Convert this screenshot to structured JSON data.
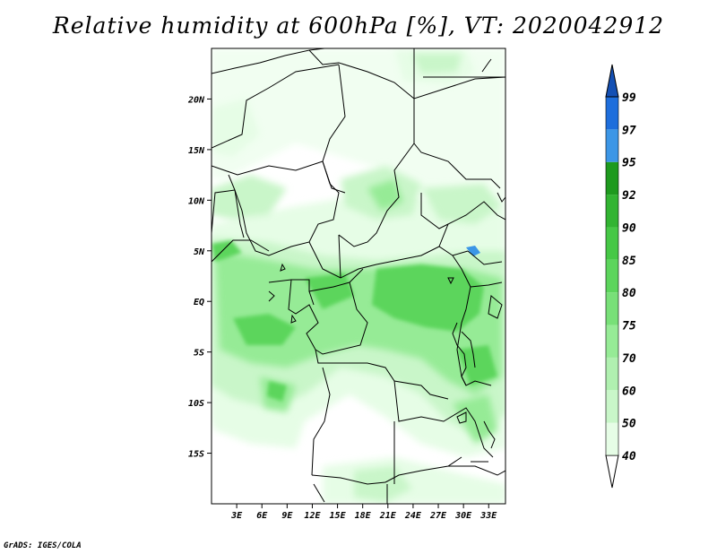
{
  "title": "Relative humidity at 600hPa [%], VT: 2020042912",
  "credit": "GrADS: IGES/COLA",
  "map": {
    "lon_range": [
      0,
      35
    ],
    "lat_range": [
      -20,
      25
    ],
    "y_ticks": [
      {
        "lat": 20,
        "label": "20N"
      },
      {
        "lat": 15,
        "label": "15N"
      },
      {
        "lat": 10,
        "label": "10N"
      },
      {
        "lat": 5,
        "label": "5N"
      },
      {
        "lat": 0,
        "label": "EQ"
      },
      {
        "lat": -5,
        "label": "5S"
      },
      {
        "lat": -10,
        "label": "10S"
      },
      {
        "lat": -15,
        "label": "15S"
      }
    ],
    "x_ticks": [
      {
        "lon": 3,
        "label": "3E"
      },
      {
        "lon": 6,
        "label": "6E"
      },
      {
        "lon": 9,
        "label": "9E"
      },
      {
        "lon": 12,
        "label": "12E"
      },
      {
        "lon": 15,
        "label": "15E"
      },
      {
        "lon": 18,
        "label": "18E"
      },
      {
        "lon": 21,
        "label": "21E"
      },
      {
        "lon": 24,
        "label": "24E"
      },
      {
        "lon": 27,
        "label": "27E"
      },
      {
        "lon": 30,
        "label": "30E"
      },
      {
        "lon": 33,
        "label": "33E"
      }
    ]
  },
  "colorbar": {
    "levels": [
      "40",
      "50",
      "60",
      "70",
      "75",
      "80",
      "85",
      "90",
      "92",
      "95",
      "97",
      "99"
    ],
    "colors": [
      "#e6fde6",
      "#c9f6c9",
      "#b0f0b0",
      "#96eb96",
      "#78e078",
      "#5cd55c",
      "#46c846",
      "#32b432",
      "#1e9a1e",
      "#3c96e6",
      "#1e6edc",
      "#1450b4"
    ],
    "under_color": "#ffffff",
    "over_color": "#1450b4"
  },
  "colors": {
    "light": "#e6fde6",
    "pale": "#c9f6c9",
    "mid": "#96eb96",
    "deep": "#5cd55c",
    "lake": "#3c96e6",
    "border": "#000000"
  }
}
